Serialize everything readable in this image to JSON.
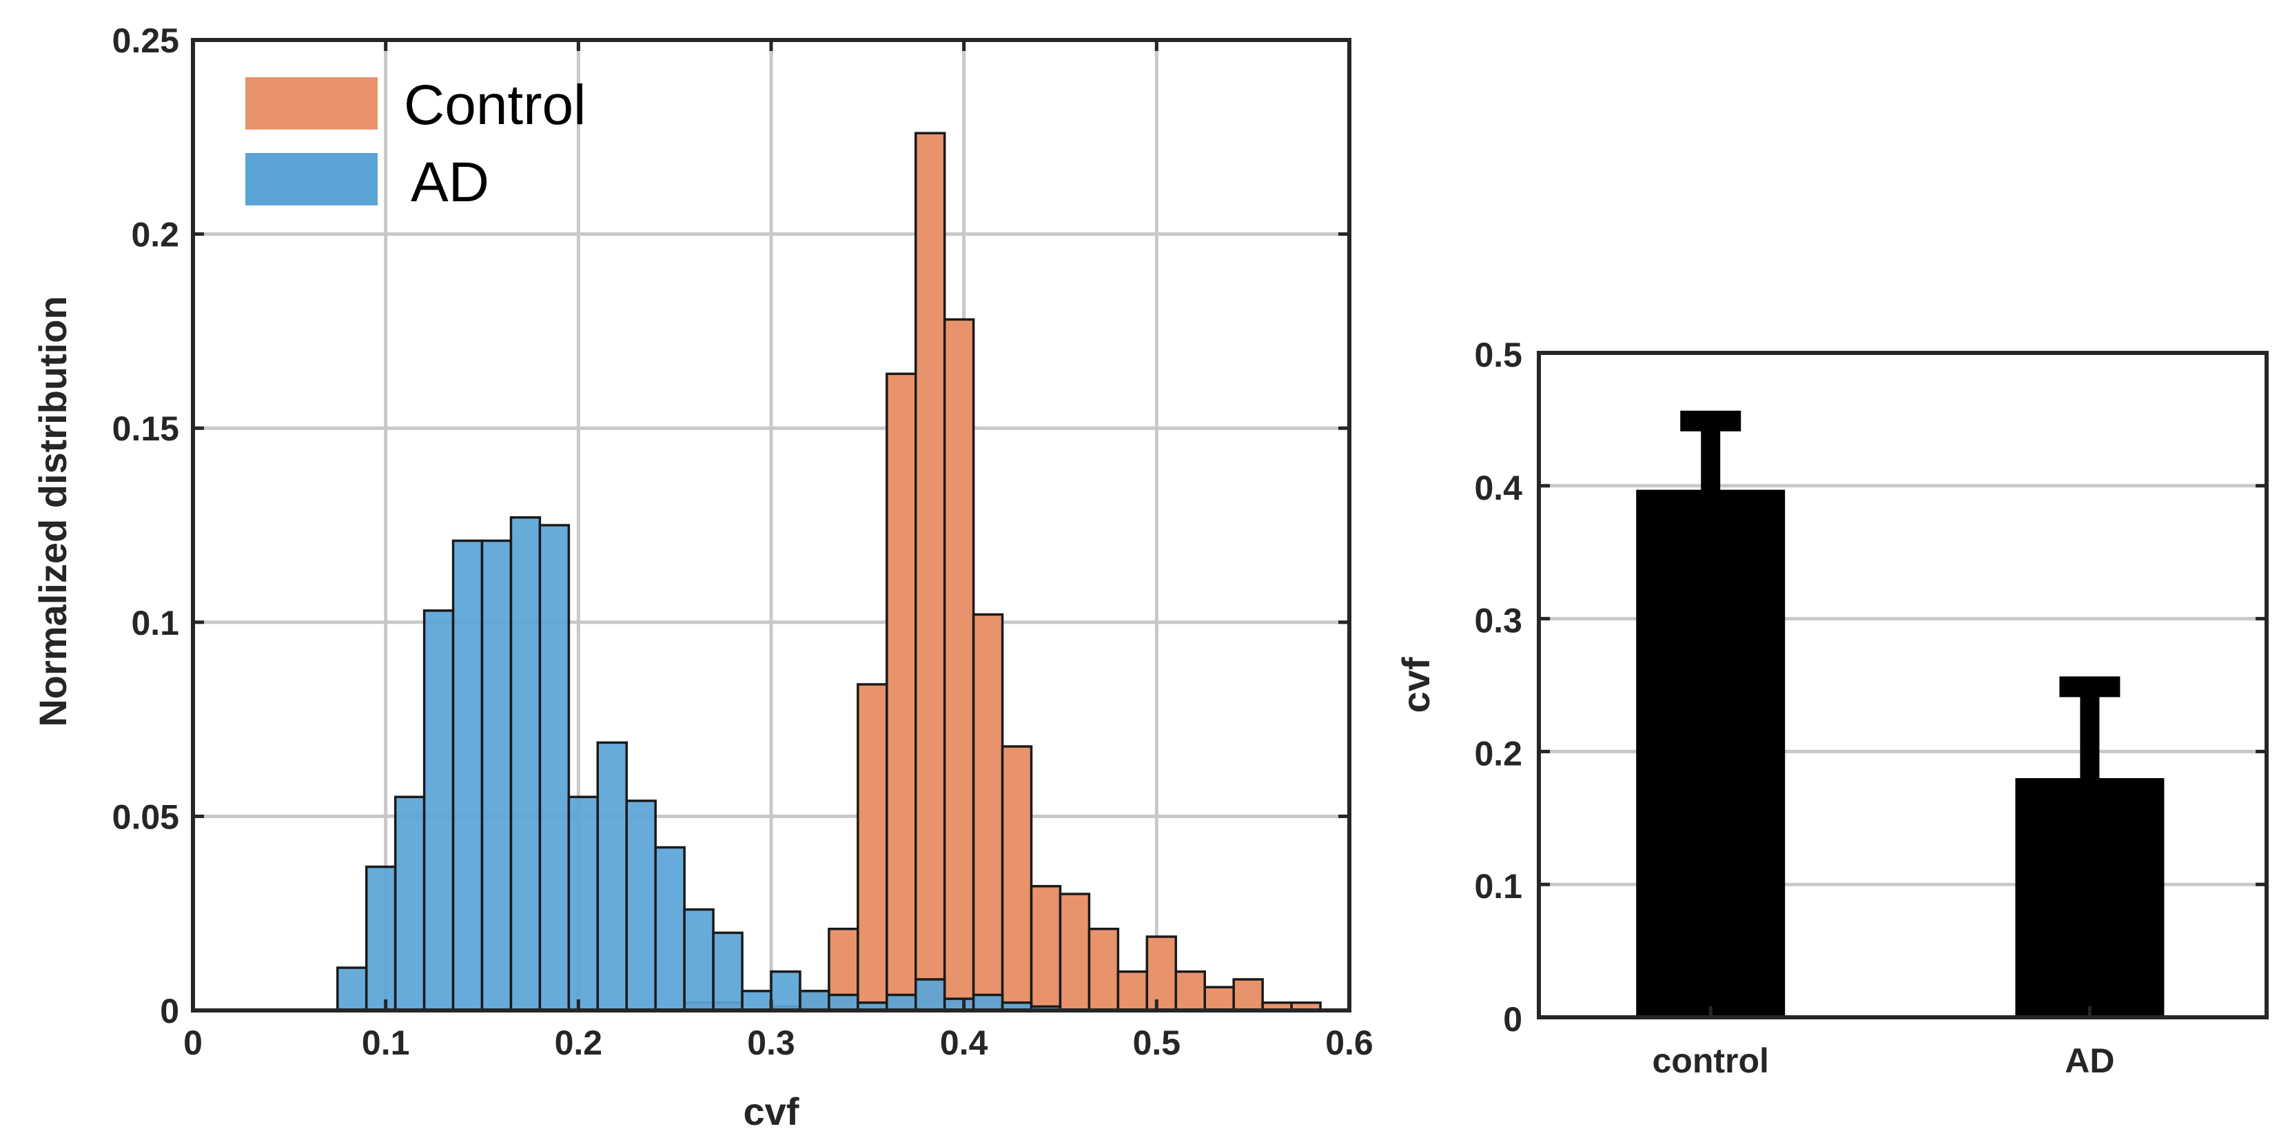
{
  "colors": {
    "control": "#e8936c",
    "ad": "#5aa4d8",
    "overlap": "#a8714f",
    "bar": "#000000",
    "axis": "#262626",
    "grid": "#c8c8c8"
  },
  "chart_data": [
    {
      "type": "histogram",
      "title": "",
      "xlabel": "cvf",
      "ylabel": "Normalized distribution",
      "xlim": [
        0,
        0.6
      ],
      "ylim": [
        0,
        0.25
      ],
      "grid": true,
      "legend_position": "top-left",
      "xticks": [
        0,
        0.1,
        0.2,
        0.3,
        0.4,
        0.5,
        0.6
      ],
      "xtick_labels": [
        "0",
        "0.1",
        "0.2",
        "0.3",
        "0.4",
        "0.5",
        "0.6"
      ],
      "yticks": [
        0,
        0.05,
        0.1,
        0.15,
        0.2,
        0.25
      ],
      "ytick_labels": [
        "0",
        "0.05",
        "0.1",
        "0.15",
        "0.2",
        "0.25"
      ],
      "bin_width": 0.015,
      "series": [
        {
          "name": "Control",
          "key": "control",
          "bin_starts": [
            0.255,
            0.27,
            0.285,
            0.3,
            0.315,
            0.33,
            0.345,
            0.36,
            0.375,
            0.39,
            0.405,
            0.42,
            0.435,
            0.45,
            0.465,
            0.48,
            0.495,
            0.51,
            0.525,
            0.54,
            0.555,
            0.57
          ],
          "values": [
            0.002,
            0.002,
            0.0,
            0.001,
            0.005,
            0.021,
            0.084,
            0.164,
            0.226,
            0.178,
            0.102,
            0.068,
            0.032,
            0.03,
            0.021,
            0.01,
            0.019,
            0.01,
            0.006,
            0.008,
            0.002,
            0.002
          ]
        },
        {
          "name": "AD",
          "key": "ad",
          "bin_starts": [
            0.075,
            0.09,
            0.105,
            0.12,
            0.135,
            0.15,
            0.165,
            0.18,
            0.195,
            0.21,
            0.225,
            0.24,
            0.255,
            0.27,
            0.285,
            0.3,
            0.315,
            0.33,
            0.345,
            0.36,
            0.375,
            0.39,
            0.405,
            0.42,
            0.435
          ],
          "values": [
            0.011,
            0.037,
            0.055,
            0.103,
            0.121,
            0.121,
            0.127,
            0.125,
            0.055,
            0.069,
            0.054,
            0.042,
            0.026,
            0.02,
            0.005,
            0.01,
            0.005,
            0.004,
            0.002,
            0.004,
            0.008,
            0.003,
            0.004,
            0.002,
            0.001
          ]
        }
      ]
    },
    {
      "type": "bar",
      "title": "",
      "xlabel": "",
      "ylabel": "cvf",
      "ylim": [
        0,
        0.5
      ],
      "grid": true,
      "categories": [
        "control",
        "AD"
      ],
      "values": [
        0.397,
        0.18
      ],
      "errors": [
        0.045,
        0.062
      ],
      "yticks": [
        0,
        0.1,
        0.2,
        0.3,
        0.4,
        0.5
      ],
      "ytick_labels": [
        "0",
        "0.1",
        "0.2",
        "0.3",
        "0.4",
        "0.5"
      ]
    }
  ]
}
